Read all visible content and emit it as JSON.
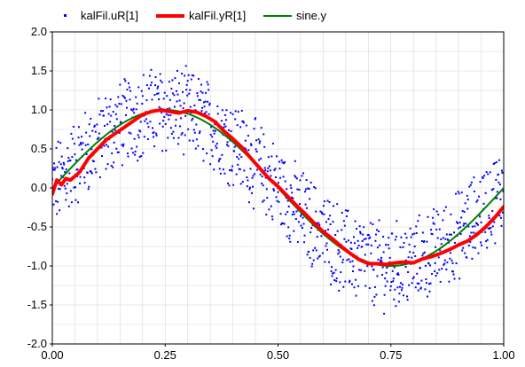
{
  "chart_data": {
    "type": "line",
    "title": "",
    "xlabel": "",
    "ylabel": "",
    "xlim": [
      0.0,
      1.0
    ],
    "ylim": [
      -2.0,
      2.0
    ],
    "xticks": [
      "0.00",
      "0.25",
      "0.50",
      "0.75",
      "1.00"
    ],
    "yticks": [
      "2.0",
      "1.5",
      "1.0",
      "0.5",
      "0.0",
      "-0.5",
      "-1.0",
      "-1.5",
      "-2.0"
    ],
    "grid": true,
    "legend_position": "top",
    "series": [
      {
        "name": "kalFil.uR[1]",
        "style": "markers",
        "color": "#0000ff",
        "description": "noisy sine measurement, amplitude 1, frequency 1 Hz, noise about ±0.5",
        "x": [
          0.0,
          0.02,
          0.04,
          0.06,
          0.08,
          0.1,
          0.12,
          0.14,
          0.16,
          0.18,
          0.2,
          0.22,
          0.24,
          0.26,
          0.28,
          0.3,
          0.32,
          0.34,
          0.36,
          0.38,
          0.4,
          0.42,
          0.44,
          0.46,
          0.48,
          0.5,
          0.52,
          0.54,
          0.56,
          0.58,
          0.6,
          0.62,
          0.64,
          0.66,
          0.68,
          0.7,
          0.72,
          0.74,
          0.76,
          0.78,
          0.8,
          0.82,
          0.84,
          0.86,
          0.88,
          0.9,
          0.92,
          0.94,
          0.96,
          0.98,
          1.0
        ],
        "y": [
          -0.2,
          0.3,
          0.1,
          0.6,
          0.2,
          0.9,
          0.5,
          1.1,
          0.6,
          1.2,
          0.8,
          1.3,
          0.7,
          1.3,
          0.9,
          1.2,
          0.8,
          1.0,
          0.6,
          0.9,
          0.3,
          0.7,
          0.1,
          0.4,
          -0.1,
          0.0,
          -0.4,
          -0.1,
          -0.6,
          -0.3,
          -0.9,
          -0.5,
          -1.1,
          -0.7,
          -1.3,
          -0.8,
          -1.4,
          -0.9,
          -1.3,
          -0.7,
          -1.2,
          -0.6,
          -1.0,
          -0.4,
          -0.9,
          -0.3,
          -0.6,
          -0.1,
          -0.4,
          0.1,
          0.2
        ]
      },
      {
        "name": "kalFil.yR[1]",
        "style": "thick-line",
        "color": "#ff0000",
        "x": [
          0.0,
          0.01,
          0.02,
          0.03,
          0.04,
          0.06,
          0.08,
          0.1,
          0.12,
          0.14,
          0.16,
          0.18,
          0.2,
          0.22,
          0.24,
          0.26,
          0.28,
          0.3,
          0.32,
          0.34,
          0.36,
          0.38,
          0.4,
          0.42,
          0.44,
          0.46,
          0.48,
          0.5,
          0.52,
          0.54,
          0.56,
          0.58,
          0.6,
          0.62,
          0.64,
          0.66,
          0.68,
          0.7,
          0.72,
          0.74,
          0.76,
          0.78,
          0.8,
          0.82,
          0.84,
          0.86,
          0.88,
          0.9,
          0.92,
          0.94,
          0.96,
          0.98,
          1.0
        ],
        "y": [
          -0.08,
          0.1,
          0.04,
          0.12,
          0.1,
          0.2,
          0.38,
          0.5,
          0.62,
          0.7,
          0.78,
          0.86,
          0.94,
          0.98,
          1.0,
          0.98,
          0.96,
          0.99,
          0.97,
          0.92,
          0.85,
          0.73,
          0.63,
          0.52,
          0.38,
          0.25,
          0.12,
          0.02,
          -0.1,
          -0.22,
          -0.33,
          -0.45,
          -0.56,
          -0.65,
          -0.75,
          -0.84,
          -0.92,
          -0.97,
          -0.97,
          -0.98,
          -0.96,
          -0.95,
          -0.96,
          -0.91,
          -0.88,
          -0.84,
          -0.79,
          -0.73,
          -0.68,
          -0.6,
          -0.5,
          -0.38,
          -0.24
        ]
      },
      {
        "name": "sine.y",
        "style": "line",
        "color": "#008000",
        "amplitude": 1,
        "frequency": 1
      }
    ]
  },
  "colors": {
    "grid": "#d8d8d8",
    "axis": "#000000"
  }
}
